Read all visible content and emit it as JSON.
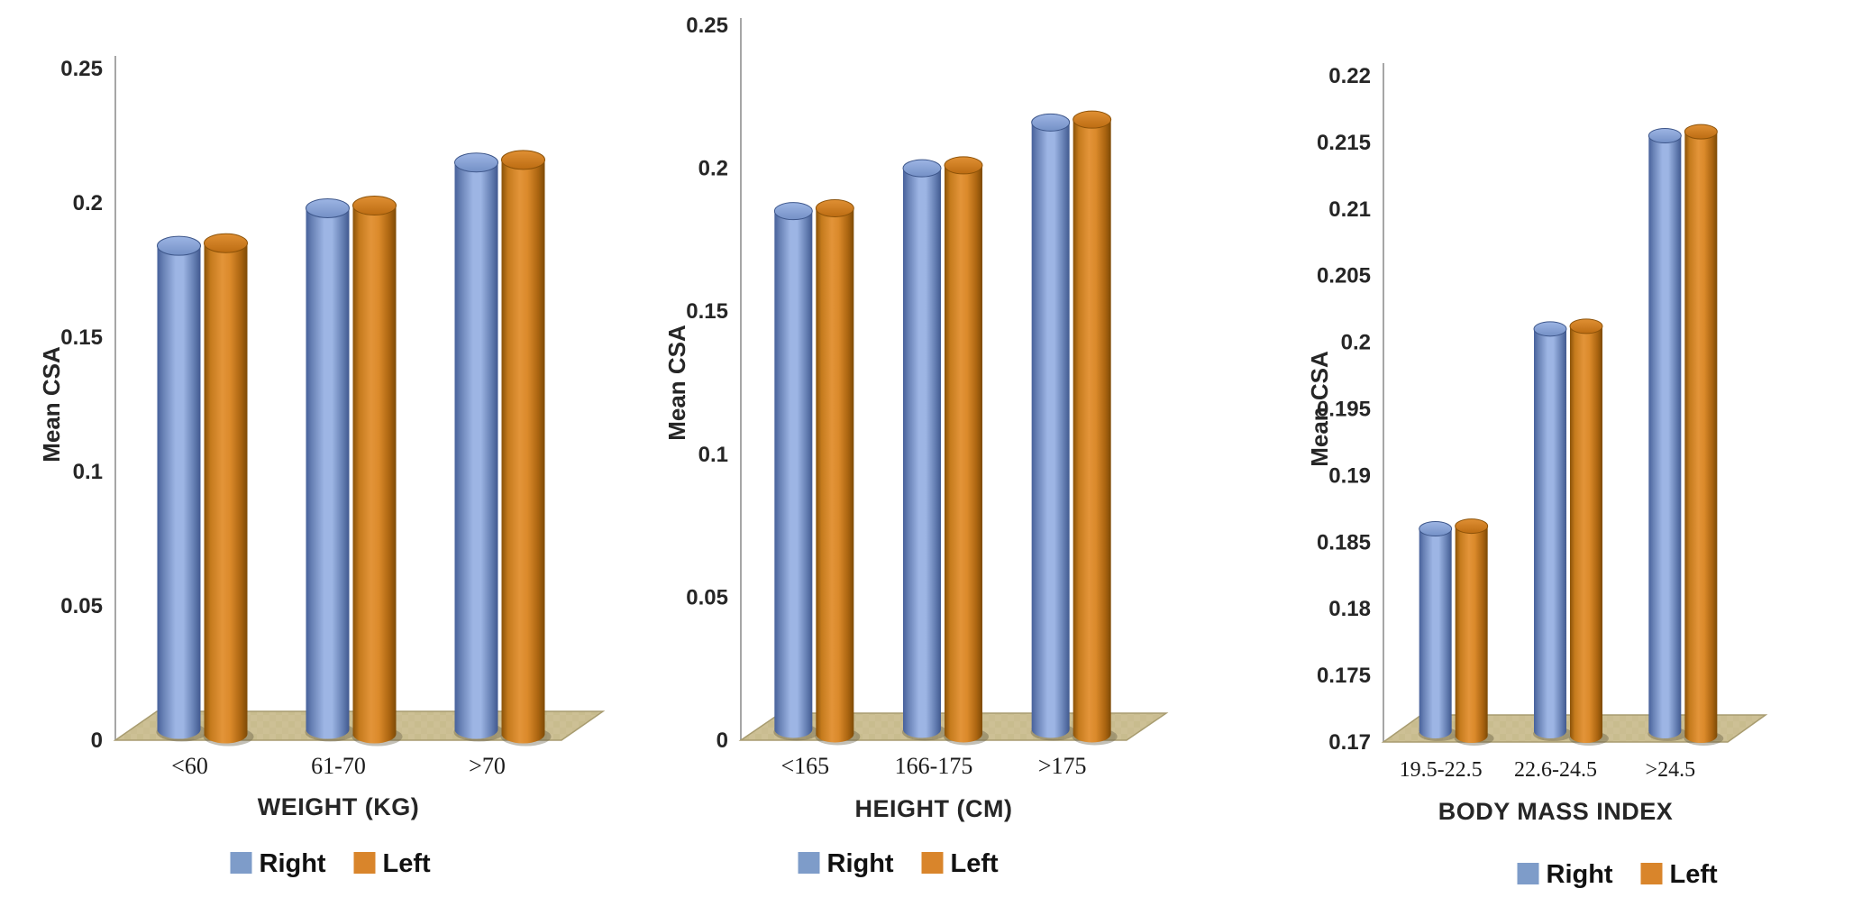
{
  "figure": {
    "background": "#ffffff",
    "y_axis_label_repeated": "Mean CSA"
  },
  "colors": {
    "right_bar": "#84A0CE",
    "right_bar_dark": "#47619B",
    "right_bar_light": "#9DB5E4",
    "left_bar": "#D9821F",
    "left_bar_dark": "#8A5208",
    "left_bar_light": "#E39439",
    "right_legend_swatch": "#7E9CC9",
    "left_legend_swatch": "#D9852B",
    "floor": "#CDC095",
    "floor_alt": "#C4B789",
    "floor_edge": "#A89C70",
    "axis_line": "#A6A6A6",
    "text": "#262626"
  },
  "chart_data": [
    {
      "id": "weight",
      "type": "bar",
      "style": "3d-cylinder",
      "title": "",
      "xlabel": "WEIGHT (KG)",
      "ylabel": "Mean CSA",
      "categories": [
        "<60",
        "61-70",
        ">70"
      ],
      "series": [
        {
          "name": "Right",
          "values": [
            0.184,
            0.198,
            0.215
          ]
        },
        {
          "name": "Left",
          "values": [
            0.185,
            0.199,
            0.216
          ]
        }
      ],
      "ylim": [
        0,
        0.25
      ],
      "y_ticks": [
        "0",
        "0.05",
        "0.1",
        "0.15",
        "0.2",
        "0.25"
      ],
      "legend": [
        "Right",
        "Left"
      ],
      "legend_position": "bottom",
      "grid": false
    },
    {
      "id": "height",
      "type": "bar",
      "style": "3d-cylinder",
      "title": "",
      "xlabel": "HEIGHT (CM)",
      "ylabel": "Mean CSA",
      "categories": [
        "<165",
        "166-175",
        ">175"
      ],
      "series": [
        {
          "name": "Right",
          "values": [
            0.185,
            0.2,
            0.216
          ]
        },
        {
          "name": "Left",
          "values": [
            0.186,
            0.201,
            0.217
          ]
        }
      ],
      "ylim": [
        0,
        0.25
      ],
      "y_ticks": [
        "0",
        "0.05",
        "0.1",
        "0.15",
        "0.2",
        "0.25"
      ],
      "legend": [
        "Right",
        "Left"
      ],
      "legend_position": "bottom",
      "grid": false
    },
    {
      "id": "bmi",
      "type": "bar",
      "style": "3d-cylinder",
      "title": "",
      "xlabel": "BODY MASS INDEX",
      "ylabel": "Mean CSA",
      "categories": [
        "19.5-22.5",
        "22.6-24.5",
        ">24.5"
      ],
      "series": [
        {
          "name": "Right",
          "values": [
            0.186,
            0.201,
            0.2155
          ]
        },
        {
          "name": "Left",
          "values": [
            0.1862,
            0.2012,
            0.2158
          ]
        }
      ],
      "ylim": [
        0.17,
        0.22
      ],
      "y_ticks": [
        "0.17",
        "0.175",
        "0.18",
        "0.185",
        "0.19",
        "0.195",
        "0.2",
        "0.205",
        "0.21",
        "0.215",
        "0.22"
      ],
      "legend": [
        "Right",
        "Left"
      ],
      "legend_position": "bottom",
      "grid": false
    }
  ]
}
